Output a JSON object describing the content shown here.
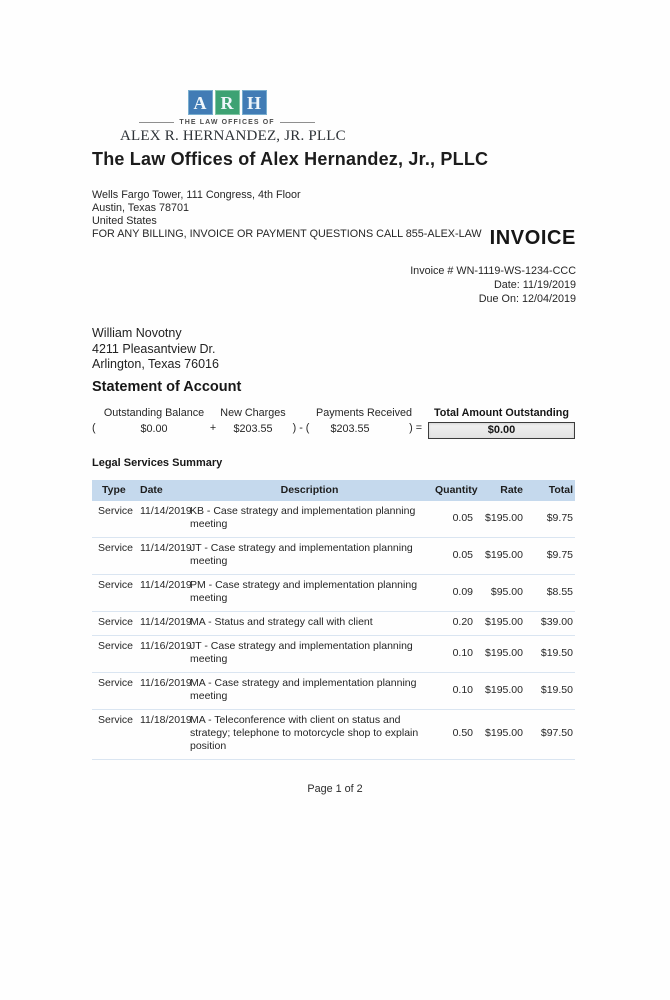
{
  "logo": {
    "squares": [
      {
        "letter": "A",
        "color": "#417cb5"
      },
      {
        "letter": "R",
        "color": "#3da273"
      },
      {
        "letter": "H",
        "color": "#417cb5"
      }
    ],
    "tagline": "THE LAW OFFICES OF",
    "firm_name": "ALEX R. HERNANDEZ, JR. PLLC"
  },
  "header": {
    "title": "The Law Offices of Alex Hernandez, Jr., PLLC",
    "address_lines": [
      "Wells Fargo Tower, 111 Congress, 4th Floor",
      "Austin, Texas 78701",
      "United States",
      "FOR ANY BILLING, INVOICE OR PAYMENT QUESTIONS CALL 855-ALEX-LAW"
    ]
  },
  "invoice": {
    "heading": "INVOICE",
    "number_line": "Invoice # WN-1119-WS-1234-CCC",
    "date_line": "Date: 11/19/2019",
    "due_line": "Due On: 12/04/2019"
  },
  "client": {
    "name": "William Novotny",
    "address1": "4211 Pleasantview Dr.",
    "address2": "Arlington, Texas 76016"
  },
  "statement": {
    "heading": "Statement of Account",
    "open_paren": "(",
    "outstanding_label": "Outstanding Balance",
    "outstanding_value": "$0.00",
    "plus": "+",
    "new_charges_label": "New Charges",
    "new_charges_value": "$203.55",
    "minus": ") - (",
    "payments_label": "Payments Received",
    "payments_value": "$203.55",
    "equals": ") =",
    "total_label": "Total Amount Outstanding",
    "total_value": "$0.00"
  },
  "services": {
    "heading": "Legal Services Summary",
    "columns": [
      "Type",
      "Date",
      "Description",
      "Quantity",
      "Rate",
      "Total"
    ],
    "rows": [
      {
        "type": "Service",
        "date": "11/14/2019",
        "description": "KB - Case strategy and implementation planning meeting",
        "quantity": "0.05",
        "rate": "$195.00",
        "total": "$9.75"
      },
      {
        "type": "Service",
        "date": "11/14/2019",
        "description": "JT - Case strategy and implementation planning meeting",
        "quantity": "0.05",
        "rate": "$195.00",
        "total": "$9.75"
      },
      {
        "type": "Service",
        "date": "11/14/2019",
        "description": "PM - Case strategy and implementation planning meeting",
        "quantity": "0.09",
        "rate": "$95.00",
        "total": "$8.55"
      },
      {
        "type": "Service",
        "date": "11/14/2019",
        "description": "MA - Status and strategy call with client",
        "quantity": "0.20",
        "rate": "$195.00",
        "total": "$39.00"
      },
      {
        "type": "Service",
        "date": "11/16/2019",
        "description": "JT - Case strategy and implementation planning meeting",
        "quantity": "0.10",
        "rate": "$195.00",
        "total": "$19.50"
      },
      {
        "type": "Service",
        "date": "11/16/2019",
        "description": "MA - Case strategy and implementation planning meeting",
        "quantity": "0.10",
        "rate": "$195.00",
        "total": "$19.50"
      },
      {
        "type": "Service",
        "date": "11/18/2019",
        "description": "MA - Teleconference with client on status and strategy; telephone to motorcycle shop to explain position",
        "quantity": "0.50",
        "rate": "$195.00",
        "total": "$97.50"
      }
    ]
  },
  "footer": {
    "page_label": "Page 1 of 2"
  },
  "colors": {
    "logo_blue": "#417cb5",
    "logo_green": "#3da273",
    "table_header_bg": "#c5d9ed",
    "total_box_bg": "#e9e9e9"
  }
}
